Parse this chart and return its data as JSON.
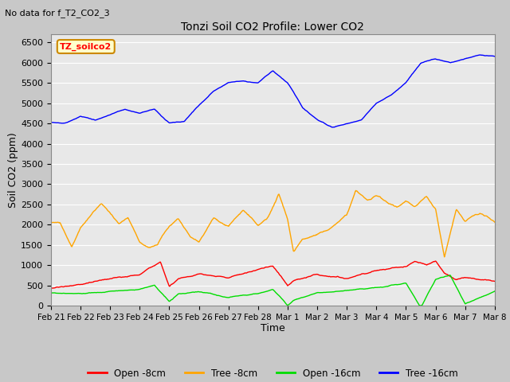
{
  "title": "Tonzi Soil CO2 Profile: Lower CO2",
  "xlabel": "Time",
  "ylabel": "Soil CO2 (ppm)",
  "no_data_text": "No data for f_T2_CO2_3",
  "legend_box_label": "TZ_soilco2",
  "ylim": [
    0,
    6700
  ],
  "yticks": [
    0,
    500,
    1000,
    1500,
    2000,
    2500,
    3000,
    3500,
    4000,
    4500,
    5000,
    5500,
    6000,
    6500
  ],
  "xtick_labels": [
    "Feb 21",
    "Feb 22",
    "Feb 23",
    "Feb 24",
    "Feb 25",
    "Feb 26",
    "Feb 27",
    "Feb 28",
    "Mar 1",
    "Mar 2",
    "Mar 3",
    "Mar 4",
    "Mar 5",
    "Mar 6",
    "Mar 7",
    "Mar 8"
  ],
  "series_colors": {
    "open_8cm": "#ff0000",
    "tree_8cm": "#ffa500",
    "open_16cm": "#00dd00",
    "tree_16cm": "#0000ff"
  },
  "series_labels": [
    "Open -8cm",
    "Tree -8cm",
    "Open -16cm",
    "Tree -16cm"
  ],
  "fig_bg_color": "#c8c8c8",
  "plot_bg_color": "#e8e8e8"
}
